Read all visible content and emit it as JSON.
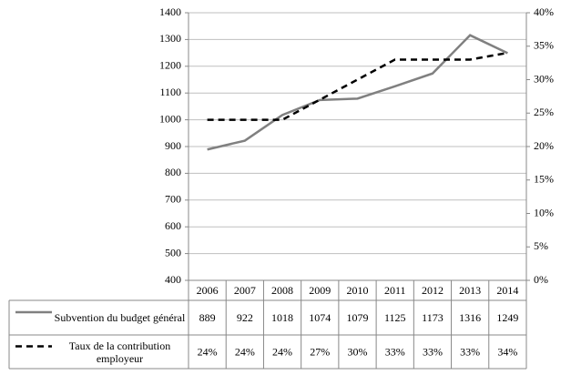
{
  "chart_data": {
    "type": "line",
    "categories": [
      "2006",
      "2007",
      "2008",
      "2009",
      "2010",
      "2011",
      "2012",
      "2013",
      "2014"
    ],
    "series": [
      {
        "name": "Subvention du budget général",
        "color": "#808080",
        "values": [
          889,
          922,
          1018,
          1074,
          1079,
          1125,
          1173,
          1316,
          1249
        ]
      },
      {
        "name": "Taux de la contribution employeur",
        "color": "#000000",
        "axis": "y2",
        "dashed": true,
        "values": [
          24,
          24,
          24,
          27,
          30,
          33,
          33,
          33,
          34
        ],
        "value_labels": [
          "24%",
          "24%",
          "24%",
          "27%",
          "30%",
          "33%",
          "33%",
          "33%",
          "34%"
        ]
      }
    ],
    "ylim": [
      400,
      1400
    ],
    "yticks": [
      400,
      500,
      600,
      700,
      800,
      900,
      1000,
      1100,
      1200,
      1300,
      1400
    ],
    "y2lim": [
      0,
      40
    ],
    "y2ticks": [
      {
        "value": 0,
        "label": "0%"
      },
      {
        "value": 5,
        "label": "5%"
      },
      {
        "value": 10,
        "label": "10%"
      },
      {
        "value": 15,
        "label": "15%"
      },
      {
        "value": 20,
        "label": "20%"
      },
      {
        "value": 25,
        "label": "25%"
      },
      {
        "value": 30,
        "label": "30%"
      },
      {
        "value": 35,
        "label": "35%"
      },
      {
        "value": 40,
        "label": "40%"
      }
    ],
    "grid": true
  }
}
